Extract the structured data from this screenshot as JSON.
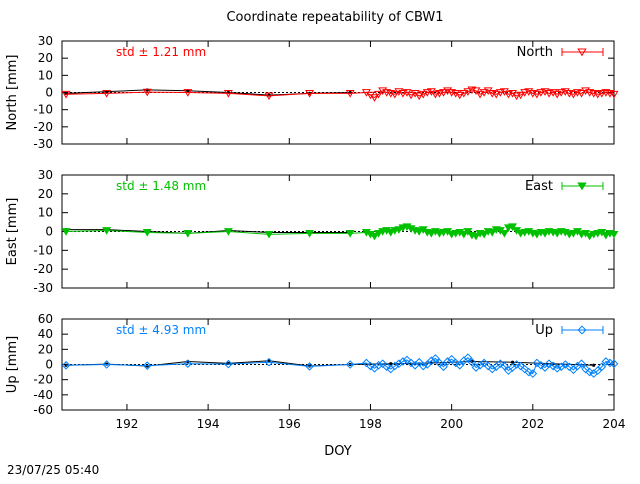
{
  "title": "Coordinate repeatability of CBW1",
  "timestamp": "23/07/25 05:40",
  "colors": {
    "north": "#ff0000",
    "east": "#00c000",
    "up": "#0080ff",
    "fit": "#000000"
  },
  "chart_data": [
    {
      "type": "line",
      "name": "north",
      "ylabel": "North [mm]",
      "legend_label": "North",
      "legend_position": "top-right",
      "std_label": "std ± 1.21 mm",
      "marker": "triangle-down-open",
      "xlim": [
        190.4,
        204.0
      ],
      "ylim": [
        -30,
        30
      ],
      "yticks": [
        30,
        20,
        10,
        0,
        -10,
        -20,
        -30
      ],
      "grid": false,
      "zero_line": true,
      "series": {
        "x": [
          190.5,
          191.5,
          192.5,
          193.5,
          194.5,
          195.5,
          196.5,
          197.5,
          197.9,
          198.0,
          198.1,
          198.2,
          198.3,
          198.4,
          198.5,
          198.6,
          198.7,
          198.8,
          198.9,
          199.0,
          199.1,
          199.2,
          199.3,
          199.4,
          199.5,
          199.6,
          199.7,
          199.8,
          199.9,
          200.0,
          200.1,
          200.2,
          200.3,
          200.4,
          200.5,
          200.6,
          200.7,
          200.8,
          200.9,
          201.0,
          201.1,
          201.2,
          201.3,
          201.4,
          201.5,
          201.6,
          201.7,
          201.8,
          201.9,
          202.0,
          202.1,
          202.2,
          202.3,
          202.4,
          202.5,
          202.6,
          202.7,
          202.8,
          202.9,
          203.0,
          203.1,
          203.2,
          203.3,
          203.4,
          203.5,
          203.6,
          203.7,
          203.8,
          203.9,
          204.0
        ],
        "y": [
          -1.0,
          -0.5,
          0.2,
          0.0,
          -0.5,
          -2.0,
          -0.5,
          -0.5,
          0.0,
          -1.5,
          -3.0,
          -1.0,
          1.0,
          0.0,
          -0.5,
          -1.0,
          0.5,
          -0.5,
          0.0,
          -1.5,
          -0.5,
          -2.0,
          -1.0,
          0.0,
          0.5,
          -1.0,
          -0.5,
          0.0,
          1.0,
          0.0,
          -0.5,
          -1.5,
          -0.5,
          0.5,
          1.5,
          1.0,
          -1.0,
          0.0,
          1.0,
          -0.5,
          -1.0,
          0.0,
          0.5,
          -1.0,
          -0.5,
          -2.0,
          -1.5,
          0.0,
          0.5,
          -0.5,
          -1.0,
          0.0,
          0.5,
          -0.5,
          0.0,
          -1.0,
          0.0,
          0.5,
          -0.5,
          -1.0,
          0.0,
          -0.5,
          1.0,
          0.0,
          -0.5,
          -1.0,
          -0.5,
          0.0,
          -0.5,
          -1.0
        ]
      },
      "fit": {
        "x": [
          190.5,
          191.5,
          192.5,
          193.5,
          194.5,
          195.5,
          196.5,
          197.5
        ],
        "y": [
          -0.5,
          0.5,
          1.5,
          1.0,
          0.0,
          -1.5,
          -0.5,
          0.0
        ]
      }
    },
    {
      "type": "line",
      "name": "east",
      "ylabel": "East [mm]",
      "legend_label": "East",
      "legend_position": "top-right",
      "std_label": "std ± 1.48 mm",
      "marker": "triangle-down-filled",
      "xlim": [
        190.4,
        204.0
      ],
      "ylim": [
        -30,
        30
      ],
      "yticks": [
        30,
        20,
        10,
        0,
        -10,
        -20,
        -30
      ],
      "grid": false,
      "zero_line": true,
      "series": {
        "x": [
          190.5,
          191.5,
          192.5,
          193.5,
          194.5,
          195.5,
          196.5,
          197.5,
          197.9,
          198.0,
          198.1,
          198.2,
          198.3,
          198.4,
          198.5,
          198.6,
          198.7,
          198.8,
          198.9,
          199.0,
          199.1,
          199.2,
          199.3,
          199.4,
          199.5,
          199.6,
          199.7,
          199.8,
          199.9,
          200.0,
          200.1,
          200.2,
          200.3,
          200.4,
          200.5,
          200.6,
          200.7,
          200.8,
          200.9,
          201.0,
          201.1,
          201.2,
          201.3,
          201.4,
          201.5,
          201.6,
          201.7,
          201.8,
          201.9,
          202.0,
          202.1,
          202.2,
          202.3,
          202.4,
          202.5,
          202.6,
          202.7,
          202.8,
          202.9,
          203.0,
          203.1,
          203.2,
          203.3,
          203.4,
          203.5,
          203.6,
          203.7,
          203.8,
          203.9,
          204.0
        ],
        "y": [
          0.0,
          0.5,
          -0.5,
          -1.0,
          0.0,
          -1.5,
          -1.0,
          -1.0,
          -0.5,
          -1.5,
          -2.5,
          -1.0,
          0.0,
          0.5,
          -0.5,
          0.5,
          1.0,
          2.0,
          2.5,
          1.5,
          0.5,
          0.0,
          1.0,
          -0.5,
          -1.0,
          0.0,
          -1.0,
          -0.5,
          0.0,
          -1.5,
          -1.0,
          -0.5,
          -1.5,
          0.0,
          -2.0,
          -2.5,
          -1.0,
          -1.5,
          0.0,
          -0.5,
          1.0,
          0.5,
          -1.0,
          2.0,
          2.5,
          0.5,
          -1.0,
          -0.5,
          0.0,
          -1.0,
          -1.5,
          -0.5,
          -1.0,
          0.0,
          -0.5,
          -1.0,
          0.0,
          -0.5,
          -1.5,
          -1.0,
          0.0,
          -1.5,
          -1.0,
          -2.5,
          -1.5,
          -1.0,
          -0.5,
          -2.0,
          -1.0,
          -1.5
        ]
      },
      "fit": {
        "x": [
          190.5,
          191.5,
          192.5,
          193.5,
          194.5,
          195.5,
          196.5,
          197.5
        ],
        "y": [
          1.0,
          1.0,
          0.0,
          -1.0,
          0.5,
          -0.5,
          -0.5,
          -0.5
        ]
      }
    },
    {
      "type": "line",
      "name": "up",
      "ylabel": "Up [mm]",
      "legend_label": "Up",
      "legend_position": "top-right",
      "std_label": "std ± 4.93 mm",
      "marker": "diamond-open",
      "xlim": [
        190.4,
        204.0
      ],
      "ylim": [
        -60,
        60
      ],
      "yticks": [
        60,
        40,
        20,
        0,
        -20,
        -40,
        -60
      ],
      "xticks": [
        192,
        194,
        196,
        198,
        200,
        202,
        204
      ],
      "xlabel": "DOY",
      "grid": false,
      "zero_line": true,
      "series": {
        "x": [
          190.5,
          191.5,
          192.5,
          193.5,
          194.5,
          195.5,
          196.5,
          197.5,
          197.9,
          198.0,
          198.1,
          198.2,
          198.3,
          198.4,
          198.5,
          198.6,
          198.7,
          198.8,
          198.9,
          199.0,
          199.1,
          199.2,
          199.3,
          199.4,
          199.5,
          199.6,
          199.7,
          199.8,
          199.9,
          200.0,
          200.1,
          200.2,
          200.3,
          200.4,
          200.5,
          200.6,
          200.7,
          200.8,
          200.9,
          201.0,
          201.1,
          201.2,
          201.3,
          201.4,
          201.5,
          201.6,
          201.7,
          201.8,
          201.9,
          202.0,
          202.1,
          202.2,
          202.3,
          202.4,
          202.5,
          202.6,
          202.7,
          202.8,
          202.9,
          203.0,
          203.1,
          203.2,
          203.3,
          203.4,
          203.5,
          203.6,
          203.7,
          203.8,
          203.9,
          204.0
        ],
        "y": [
          -1.0,
          0.0,
          -1.5,
          1.0,
          0.5,
          3.0,
          -2.5,
          0.0,
          2.0,
          -2.0,
          -5.0,
          -1.0,
          1.0,
          -3.0,
          -6.0,
          -2.0,
          1.0,
          4.0,
          6.0,
          2.0,
          -1.0,
          3.0,
          -2.0,
          0.0,
          5.0,
          8.0,
          2.0,
          -3.0,
          4.0,
          7.0,
          2.0,
          -1.0,
          5.0,
          9.0,
          3.0,
          -4.0,
          -1.0,
          2.0,
          -2.0,
          -6.0,
          -3.0,
          1.0,
          -2.0,
          -8.0,
          -4.0,
          0.0,
          -2.0,
          -6.0,
          -10.0,
          -12.0,
          2.0,
          -1.0,
          -4.0,
          1.0,
          -2.0,
          -5.0,
          -3.0,
          0.0,
          -3.0,
          -7.0,
          -2.0,
          1.0,
          -6.0,
          -10.0,
          -12.0,
          -8.0,
          -3.0,
          4.0,
          2.0,
          1.0
        ]
      },
      "fit": {
        "x": [
          190.5,
          191.5,
          192.5,
          193.5,
          194.5,
          195.5,
          196.5,
          197.5,
          198.5,
          199.5,
          200.5,
          201.5,
          202.5,
          203.5
        ],
        "y": [
          -1.0,
          0.5,
          -2.0,
          4.0,
          1.5,
          5.0,
          -2.0,
          0.0,
          1.0,
          2.0,
          4.0,
          3.0,
          1.0,
          -1.0
        ]
      }
    }
  ]
}
